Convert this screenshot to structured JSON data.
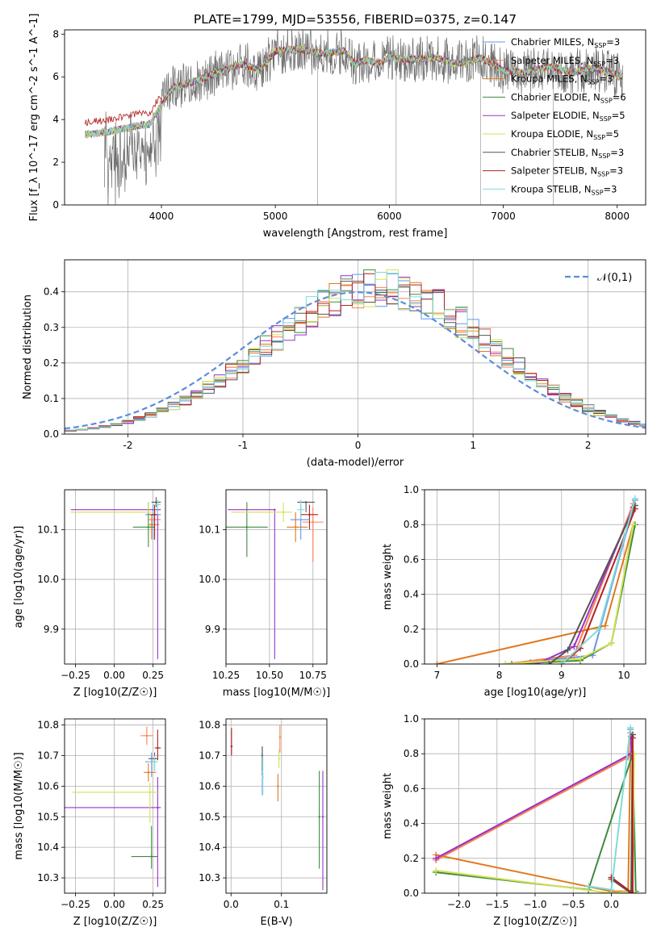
{
  "title": "PLATE=1799, MJD=53556, FIBERID=0375, z=0.147",
  "colors": [
    "#6495ED",
    "#FF7F50",
    "#E07A1F",
    "#3E8B3E",
    "#9932CC",
    "#D4E157",
    "#555555",
    "#B22222",
    "#7FDBDB"
  ],
  "models": [
    {
      "label": "Chabrier MILES, N",
      "sub": "SSP",
      "tail": "=3",
      "color": "#6495ED"
    },
    {
      "label": "Salpeter MILES, N",
      "sub": "SSP",
      "tail": "=3",
      "color": "#FF7F50"
    },
    {
      "label": "Kroupa MILES, N",
      "sub": "SSP",
      "tail": "=3",
      "color": "#E07A1F"
    },
    {
      "label": "Chabrier ELODIE, N",
      "sub": "SSP",
      "tail": "=6",
      "color": "#3E8B3E"
    },
    {
      "label": "Salpeter ELODIE, N",
      "sub": "SSP",
      "tail": "=5",
      "color": "#9932CC"
    },
    {
      "label": "Kroupa ELODIE, N",
      "sub": "SSP",
      "tail": "=5",
      "color": "#D4E157"
    },
    {
      "label": "Chabrier STELIB, N",
      "sub": "SSP",
      "tail": "=3",
      "color": "#555555"
    },
    {
      "label": "Salpeter STELIB, N",
      "sub": "SSP",
      "tail": "=3",
      "color": "#B22222"
    },
    {
      "label": "Kroupa STELIB, N",
      "sub": "SSP",
      "tail": "=3",
      "color": "#7FDBDB"
    }
  ],
  "chart_data": [
    {
      "id": "spectrum",
      "type": "line",
      "xlabel": "wavelength [Angstrom, rest frame]",
      "ylabel": "Flux [f_λ 10^-17 erg cm^-2 s^-1 A^-1]",
      "xlim": [
        3150,
        8250
      ],
      "ylim": [
        0,
        8.2
      ],
      "xticks": [
        4000,
        5000,
        6000,
        7000,
        8000
      ],
      "yticks": [
        0,
        2,
        4,
        6,
        8
      ],
      "data_x": [
        3330,
        3500,
        3700,
        3900,
        4100,
        4300,
        4500,
        4700,
        4860,
        5000,
        5200,
        5400,
        5600,
        5700,
        5800,
        5900,
        6000,
        6200,
        6400,
        6600,
        6800,
        7000,
        7200,
        7400,
        7600,
        7800,
        8050
      ],
      "data_y": [
        3.3,
        3.4,
        3.6,
        3.8,
        5.5,
        5.8,
        6.2,
        6.6,
        6.3,
        7.2,
        7.3,
        7.1,
        7.2,
        6.6,
        6.8,
        6.6,
        6.9,
        6.8,
        6.9,
        6.6,
        6.9,
        6.3,
        6.2,
        6.5,
        6.2,
        6.4,
        6.0
      ]
    },
    {
      "id": "residuals",
      "type": "bar",
      "xlabel": "(data-model)/error",
      "ylabel": "Normed distribution",
      "xlim": [
        -2.55,
        2.5
      ],
      "ylim": [
        0,
        0.49
      ],
      "xticks": [
        -2,
        -1,
        0,
        1,
        2
      ],
      "yticks": [
        0.0,
        0.1,
        0.2,
        0.3,
        0.4
      ],
      "legend": "𝒩(0,1)",
      "legend_pos": "top-right",
      "bin_centers": [
        -2.4,
        -2.2,
        -2.0,
        -1.8,
        -1.6,
        -1.4,
        -1.2,
        -1.0,
        -0.8,
        -0.6,
        -0.4,
        -0.2,
        0.0,
        0.2,
        0.4,
        0.6,
        0.8,
        1.0,
        1.2,
        1.4,
        1.6,
        1.8,
        2.0,
        2.2,
        2.4
      ],
      "hist": [
        0.01,
        0.02,
        0.03,
        0.04,
        0.06,
        0.09,
        0.13,
        0.17,
        0.22,
        0.28,
        0.32,
        0.36,
        0.39,
        0.42,
        0.4,
        0.37,
        0.34,
        0.29,
        0.25,
        0.2,
        0.16,
        0.12,
        0.09,
        0.07,
        0.05
      ]
    },
    {
      "id": "age_vs_Z",
      "type": "scatter",
      "xlabel": "Z [log10(Z/Z☉)]",
      "ylabel": "age  [log10(age/yr)]",
      "xlim": [
        -0.32,
        0.33
      ],
      "ylim": [
        9.83,
        10.18
      ],
      "xticks": [
        -0.25,
        0.0,
        0.25
      ],
      "yticks": [
        9.9,
        10.0,
        10.1
      ],
      "points": [
        {
          "x": 0.25,
          "y": 10.13,
          "xerr": [
            0.05,
            0.05
          ],
          "yerr": [
            0.05,
            0.02
          ],
          "c": 0
        },
        {
          "x": 0.26,
          "y": 10.12,
          "xerr": [
            0.04,
            0.04
          ],
          "yerr": [
            0.04,
            0.03
          ],
          "c": 1
        },
        {
          "x": 0.24,
          "y": 10.11,
          "xerr": [
            0.02,
            0.05
          ],
          "yerr": [
            0.03,
            0.02
          ],
          "c": 2
        },
        {
          "x": 0.22,
          "y": 10.105,
          "xerr": [
            0.1,
            0.04
          ],
          "yerr": [
            0.04,
            0.05
          ],
          "c": 3
        },
        {
          "x": 0.28,
          "y": 10.14,
          "xerr": [
            0.56,
            0.02
          ],
          "yerr": [
            0.3,
            0.0
          ],
          "c": 4
        },
        {
          "x": 0.22,
          "y": 10.135,
          "xerr": [
            0.5,
            0.05
          ],
          "yerr": [
            0.0,
            0.02
          ],
          "c": 5
        },
        {
          "x": 0.27,
          "y": 10.155,
          "xerr": [
            0.03,
            0.03
          ],
          "yerr": [
            0.01,
            0.01
          ],
          "c": 6
        },
        {
          "x": 0.26,
          "y": 10.13,
          "xerr": [
            0.03,
            0.02
          ],
          "yerr": [
            0.05,
            0.02
          ],
          "c": 7
        },
        {
          "x": 0.28,
          "y": 10.15,
          "xerr": [
            0.03,
            0.02
          ],
          "yerr": [
            0.02,
            0.01
          ],
          "c": 8
        }
      ]
    },
    {
      "id": "age_vs_mass",
      "type": "scatter",
      "xlabel": "mass [log10(M/M☉)]",
      "ylabel": "",
      "xlim": [
        10.25,
        10.83
      ],
      "ylim": [
        9.83,
        10.18
      ],
      "xticks": [
        10.25,
        10.5,
        10.75
      ],
      "yticks": [
        9.9,
        10.0,
        10.1
      ],
      "points": [
        {
          "x": 10.68,
          "y": 10.12,
          "xerr": [
            0.06,
            0.05
          ],
          "yerr": [
            0.04,
            0.03
          ],
          "c": 0
        },
        {
          "x": 10.75,
          "y": 10.115,
          "xerr": [
            0.06,
            0.06
          ],
          "yerr": [
            0.08,
            0.03
          ],
          "c": 1
        },
        {
          "x": 10.65,
          "y": 10.105,
          "xerr": [
            0.05,
            0.07
          ],
          "yerr": [
            0.03,
            0.03
          ],
          "c": 2
        },
        {
          "x": 10.37,
          "y": 10.105,
          "xerr": [
            0.12,
            0.12
          ],
          "yerr": [
            0.06,
            0.05
          ],
          "c": 3
        },
        {
          "x": 10.53,
          "y": 10.14,
          "xerr": [
            0.27,
            0.0
          ],
          "yerr": [
            0.3,
            0.0
          ],
          "c": 4
        },
        {
          "x": 10.58,
          "y": 10.135,
          "xerr": [
            0.3,
            0.05
          ],
          "yerr": [
            0.02,
            0.02
          ],
          "c": 5
        },
        {
          "x": 10.71,
          "y": 10.155,
          "xerr": [
            0.05,
            0.05
          ],
          "yerr": [
            0.02,
            0.0
          ],
          "c": 6
        },
        {
          "x": 10.73,
          "y": 10.13,
          "xerr": [
            0.05,
            0.05
          ],
          "yerr": [
            0.03,
            0.02
          ],
          "c": 7
        },
        {
          "x": 10.68,
          "y": 10.14,
          "xerr": [
            0.02,
            0.02
          ],
          "yerr": [
            0.02,
            0.02
          ],
          "c": 8
        }
      ]
    },
    {
      "id": "weight_vs_age",
      "type": "line",
      "xlabel": "age  [log10(age/yr)]",
      "ylabel": "mass weight",
      "xlim": [
        6.8,
        10.35
      ],
      "ylim": [
        0,
        1.0
      ],
      "xticks": [
        7,
        8,
        9,
        10
      ],
      "yticks": [
        0.0,
        0.2,
        0.4,
        0.6,
        0.8,
        1.0
      ],
      "series": [
        {
          "c": 0,
          "x": [
            8.5,
            9.5,
            10.18
          ],
          "y": [
            0.01,
            0.05,
            0.94
          ]
        },
        {
          "c": 1,
          "x": [
            8.1,
            9.2,
            10.15
          ],
          "y": [
            0.0,
            0.05,
            0.92
          ]
        },
        {
          "c": 2,
          "x": [
            7.0,
            9.7,
            10.15
          ],
          "y": [
            0.0,
            0.22,
            0.8
          ]
        },
        {
          "c": 3,
          "x": [
            8.2,
            9.3,
            9.8,
            10.18
          ],
          "y": [
            0.0,
            0.02,
            0.12,
            0.8
          ]
        },
        {
          "c": 4,
          "x": [
            8.6,
            9.2,
            10.15
          ],
          "y": [
            0.0,
            0.1,
            0.9
          ]
        },
        {
          "c": 5,
          "x": [
            8.1,
            9.3,
            9.8,
            10.15
          ],
          "y": [
            0.0,
            0.03,
            0.12,
            0.8
          ]
        },
        {
          "c": 6,
          "x": [
            8.8,
            9.1,
            10.18
          ],
          "y": [
            0.0,
            0.08,
            0.91
          ]
        },
        {
          "c": 7,
          "x": [
            9.0,
            9.3,
            10.18
          ],
          "y": [
            0.0,
            0.09,
            0.89
          ]
        },
        {
          "c": 8,
          "x": [
            9.0,
            9.6,
            10.18
          ],
          "y": [
            0.0,
            0.2,
            0.95
          ]
        }
      ]
    },
    {
      "id": "mass_vs_Z",
      "type": "scatter",
      "xlabel": "Z [log10(Z/Z☉)]",
      "ylabel": "mass [log10(M/M☉)]",
      "xlim": [
        -0.32,
        0.33
      ],
      "ylim": [
        10.25,
        10.82
      ],
      "xticks": [
        -0.25,
        0.0,
        0.25
      ],
      "yticks": [
        10.3,
        10.4,
        10.5,
        10.6,
        10.7,
        10.8
      ],
      "points": [
        {
          "x": 0.24,
          "y": 10.68,
          "xerr": [
            0.04,
            0.04
          ],
          "yerr": [
            0.05,
            0.03
          ],
          "c": 0
        },
        {
          "x": 0.21,
          "y": 10.765,
          "xerr": [
            0.04,
            0.04
          ],
          "yerr": [
            0.03,
            0.03
          ],
          "c": 1
        },
        {
          "x": 0.22,
          "y": 10.645,
          "xerr": [
            0.03,
            0.05
          ],
          "yerr": [
            0.03,
            0.03
          ],
          "c": 2
        },
        {
          "x": 0.24,
          "y": 10.37,
          "xerr": [
            0.13,
            0.04
          ],
          "yerr": [
            0.04,
            0.1
          ],
          "c": 3
        },
        {
          "x": 0.28,
          "y": 10.53,
          "xerr": [
            0.6,
            0.02
          ],
          "yerr": [
            0.26,
            0.1
          ],
          "c": 4
        },
        {
          "x": 0.23,
          "y": 10.58,
          "xerr": [
            0.5,
            0.06
          ],
          "yerr": [
            0.1,
            0.03
          ],
          "c": 5
        },
        {
          "x": 0.26,
          "y": 10.69,
          "xerr": [
            0.04,
            0.02
          ],
          "yerr": [
            0.04,
            0.02
          ],
          "c": 6
        },
        {
          "x": 0.28,
          "y": 10.725,
          "xerr": [
            0.02,
            0.02
          ],
          "yerr": [
            0.04,
            0.06
          ],
          "c": 7
        },
        {
          "x": 0.26,
          "y": 10.68,
          "xerr": [
            0.04,
            0.02
          ],
          "yerr": [
            0.03,
            0.02
          ],
          "c": 8
        }
      ]
    },
    {
      "id": "mass_vs_EBV",
      "type": "scatter",
      "xlabel": "E(B-V)",
      "ylabel": "",
      "xlim": [
        -0.01,
        0.19
      ],
      "ylim": [
        10.25,
        10.82
      ],
      "xticks": [
        0.0,
        0.1
      ],
      "yticks": [
        10.3,
        10.4,
        10.5,
        10.6,
        10.7,
        10.8
      ],
      "points": [
        {
          "x": 0.062,
          "y": 10.64,
          "yerr": [
            0.07,
            0.09
          ],
          "c": 0
        },
        {
          "x": 0.097,
          "y": 10.76,
          "yerr": [
            0.05,
            0.04
          ],
          "c": 1
        },
        {
          "x": 0.093,
          "y": 10.6,
          "yerr": [
            0.05,
            0.04
          ],
          "c": 2
        },
        {
          "x": 0.175,
          "y": 10.5,
          "yerr": [
            0.17,
            0.15
          ],
          "c": 3
        },
        {
          "x": 0.182,
          "y": 10.5,
          "yerr": [
            0.24,
            0.15
          ],
          "c": 4
        },
        {
          "x": 0.095,
          "y": 10.69,
          "yerr": [
            0.03,
            0.03
          ],
          "c": 5
        },
        {
          "x": 0.062,
          "y": 10.7,
          "yerr": [
            0.05,
            0.03
          ],
          "c": 6
        },
        {
          "x": 0.001,
          "y": 10.73,
          "yerr": [
            0.03,
            0.06
          ],
          "c": 7
        },
        {
          "x": 0.063,
          "y": 10.63,
          "yerr": [
            0.06,
            0.07
          ],
          "c": 8
        }
      ]
    },
    {
      "id": "weight_vs_Z",
      "type": "line",
      "xlabel": "Z [log10(Z/Z☉)]",
      "ylabel": "mass weight",
      "xlim": [
        -2.45,
        0.45
      ],
      "ylim": [
        0,
        1.0
      ],
      "xticks": [
        -2.0,
        -1.5,
        -1.0,
        -0.5,
        0.0
      ],
      "yticks": [
        0.0,
        0.2,
        0.4,
        0.6,
        0.8,
        1.0
      ],
      "series": [
        {
          "c": 0,
          "x": [
            -2.3,
            0.22,
            0.25
          ],
          "y": [
            0.2,
            0.78,
            0.94
          ]
        },
        {
          "c": 1,
          "x": [
            -2.3,
            0.22,
            0.25
          ],
          "y": [
            0.19,
            0.78,
            0.92
          ]
        },
        {
          "c": 2,
          "x": [
            -2.3,
            0.0,
            0.22,
            0.25
          ],
          "y": [
            0.22,
            0.01,
            0.01,
            0.8
          ]
        },
        {
          "c": 3,
          "x": [
            -2.3,
            -0.3,
            0.28,
            0.32
          ],
          "y": [
            0.12,
            0.02,
            0.8,
            0.01
          ]
        },
        {
          "c": 4,
          "x": [
            -2.3,
            0.26,
            0.26
          ],
          "y": [
            0.2,
            0.8,
            0.9
          ]
        },
        {
          "c": 5,
          "x": [
            -2.3,
            0.0,
            0.28,
            0.3
          ],
          "y": [
            0.13,
            0.0,
            0.01,
            0.8
          ]
        },
        {
          "c": 6,
          "x": [
            0.0,
            0.26,
            0.28
          ],
          "y": [
            0.08,
            0.0,
            0.91
          ]
        },
        {
          "c": 7,
          "x": [
            0.0,
            0.28,
            0.28
          ],
          "y": [
            0.09,
            0.0,
            0.89
          ]
        },
        {
          "c": 8,
          "x": [
            -0.3,
            0.0,
            0.25
          ],
          "y": [
            0.04,
            0.02,
            0.95
          ]
        }
      ]
    }
  ]
}
